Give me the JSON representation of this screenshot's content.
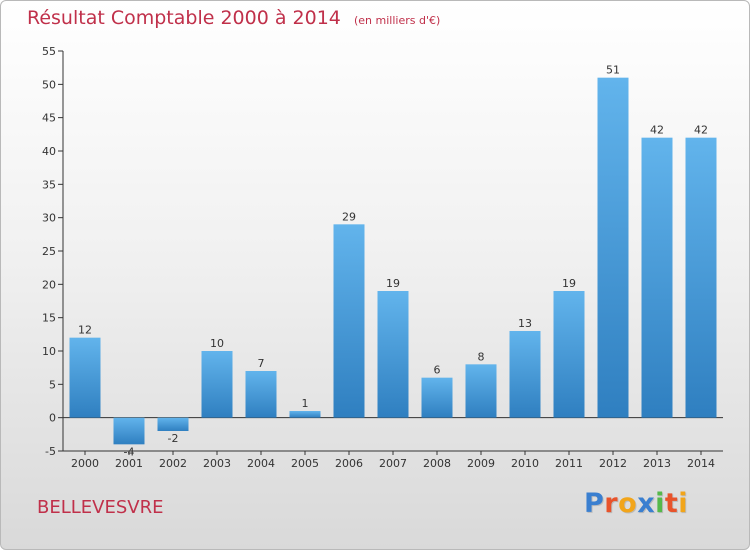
{
  "chart_data": {
    "type": "bar",
    "title": "Résultat Comptable 2000 à 2014",
    "subtitle": "(en milliers d'€)",
    "xlabel": "",
    "ylabel": "",
    "categories": [
      "2000",
      "2001",
      "2002",
      "2003",
      "2004",
      "2005",
      "2006",
      "2007",
      "2008",
      "2009",
      "2010",
      "2011",
      "2012",
      "2013",
      "2014"
    ],
    "values": [
      12,
      -4,
      -2,
      10,
      7,
      1,
      29,
      19,
      6,
      8,
      13,
      19,
      51,
      42,
      42
    ],
    "ylim": [
      -5,
      55
    ],
    "yticks": [
      -5,
      0,
      5,
      10,
      15,
      20,
      25,
      30,
      35,
      40,
      45,
      50,
      55
    ],
    "grid": false,
    "legend": "none"
  },
  "footer": {
    "commune": "BELLEVESVRE",
    "logo_letters": [
      "P",
      "r",
      "o",
      "x",
      "i",
      "t",
      "i"
    ],
    "logo_colors": [
      "#3a7fd0",
      "#e8532b",
      "#f2a51a",
      "#3a7fd0",
      "#55b94b",
      "#e8532b",
      "#f2a51a"
    ]
  },
  "colors": {
    "title": "#c0304a",
    "bar_top": "#62b4ec",
    "bar_bottom": "#2f7fc0",
    "axis": "#333333"
  }
}
